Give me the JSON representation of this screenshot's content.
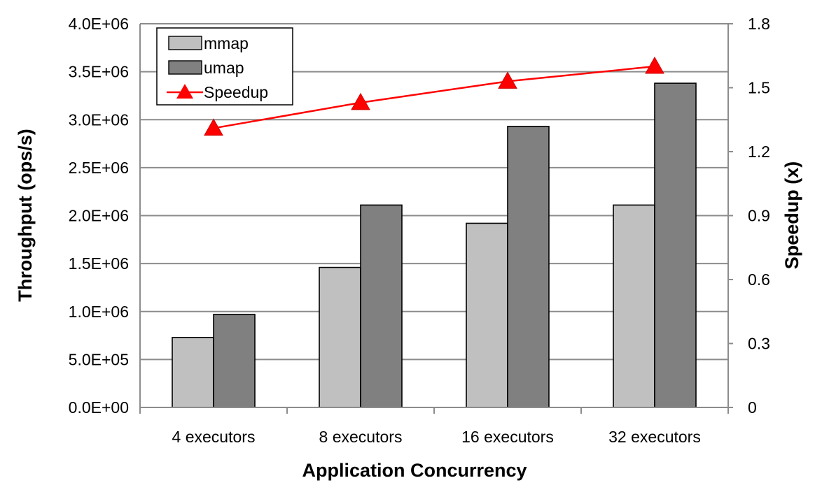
{
  "chart_data": {
    "type": "bar",
    "categories": [
      "4 executors",
      "8 executors",
      "16 executors",
      "32 executors"
    ],
    "series": [
      {
        "name": "mmap",
        "axis": "left",
        "kind": "bar",
        "color": "#c0c0c0",
        "values": [
          730000,
          1460000,
          1920000,
          2110000
        ]
      },
      {
        "name": "umap",
        "axis": "left",
        "kind": "bar",
        "color": "#808080",
        "values": [
          970000,
          2110000,
          2930000,
          3380000
        ]
      },
      {
        "name": "Speedup",
        "axis": "right",
        "kind": "line",
        "color": "#ff0000",
        "values": [
          1.31,
          1.43,
          1.53,
          1.6
        ]
      }
    ],
    "xlabel": "Application Concurrency",
    "ylabel": "Throughput (ops/s)",
    "y2label": "Speedup (x)",
    "ylim": [
      0,
      4000000
    ],
    "y2lim": [
      0,
      1.8
    ],
    "yticks": [
      "0.0E+00",
      "5.0E+05",
      "1.0E+06",
      "1.5E+06",
      "2.0E+06",
      "2.5E+06",
      "3.0E+06",
      "3.5E+06",
      "4.0E+06"
    ],
    "y2ticks": [
      "0",
      "0.3",
      "0.6",
      "0.9",
      "1.2",
      "1.5",
      "1.8"
    ],
    "grid": true,
    "legend_position": "top-left"
  }
}
